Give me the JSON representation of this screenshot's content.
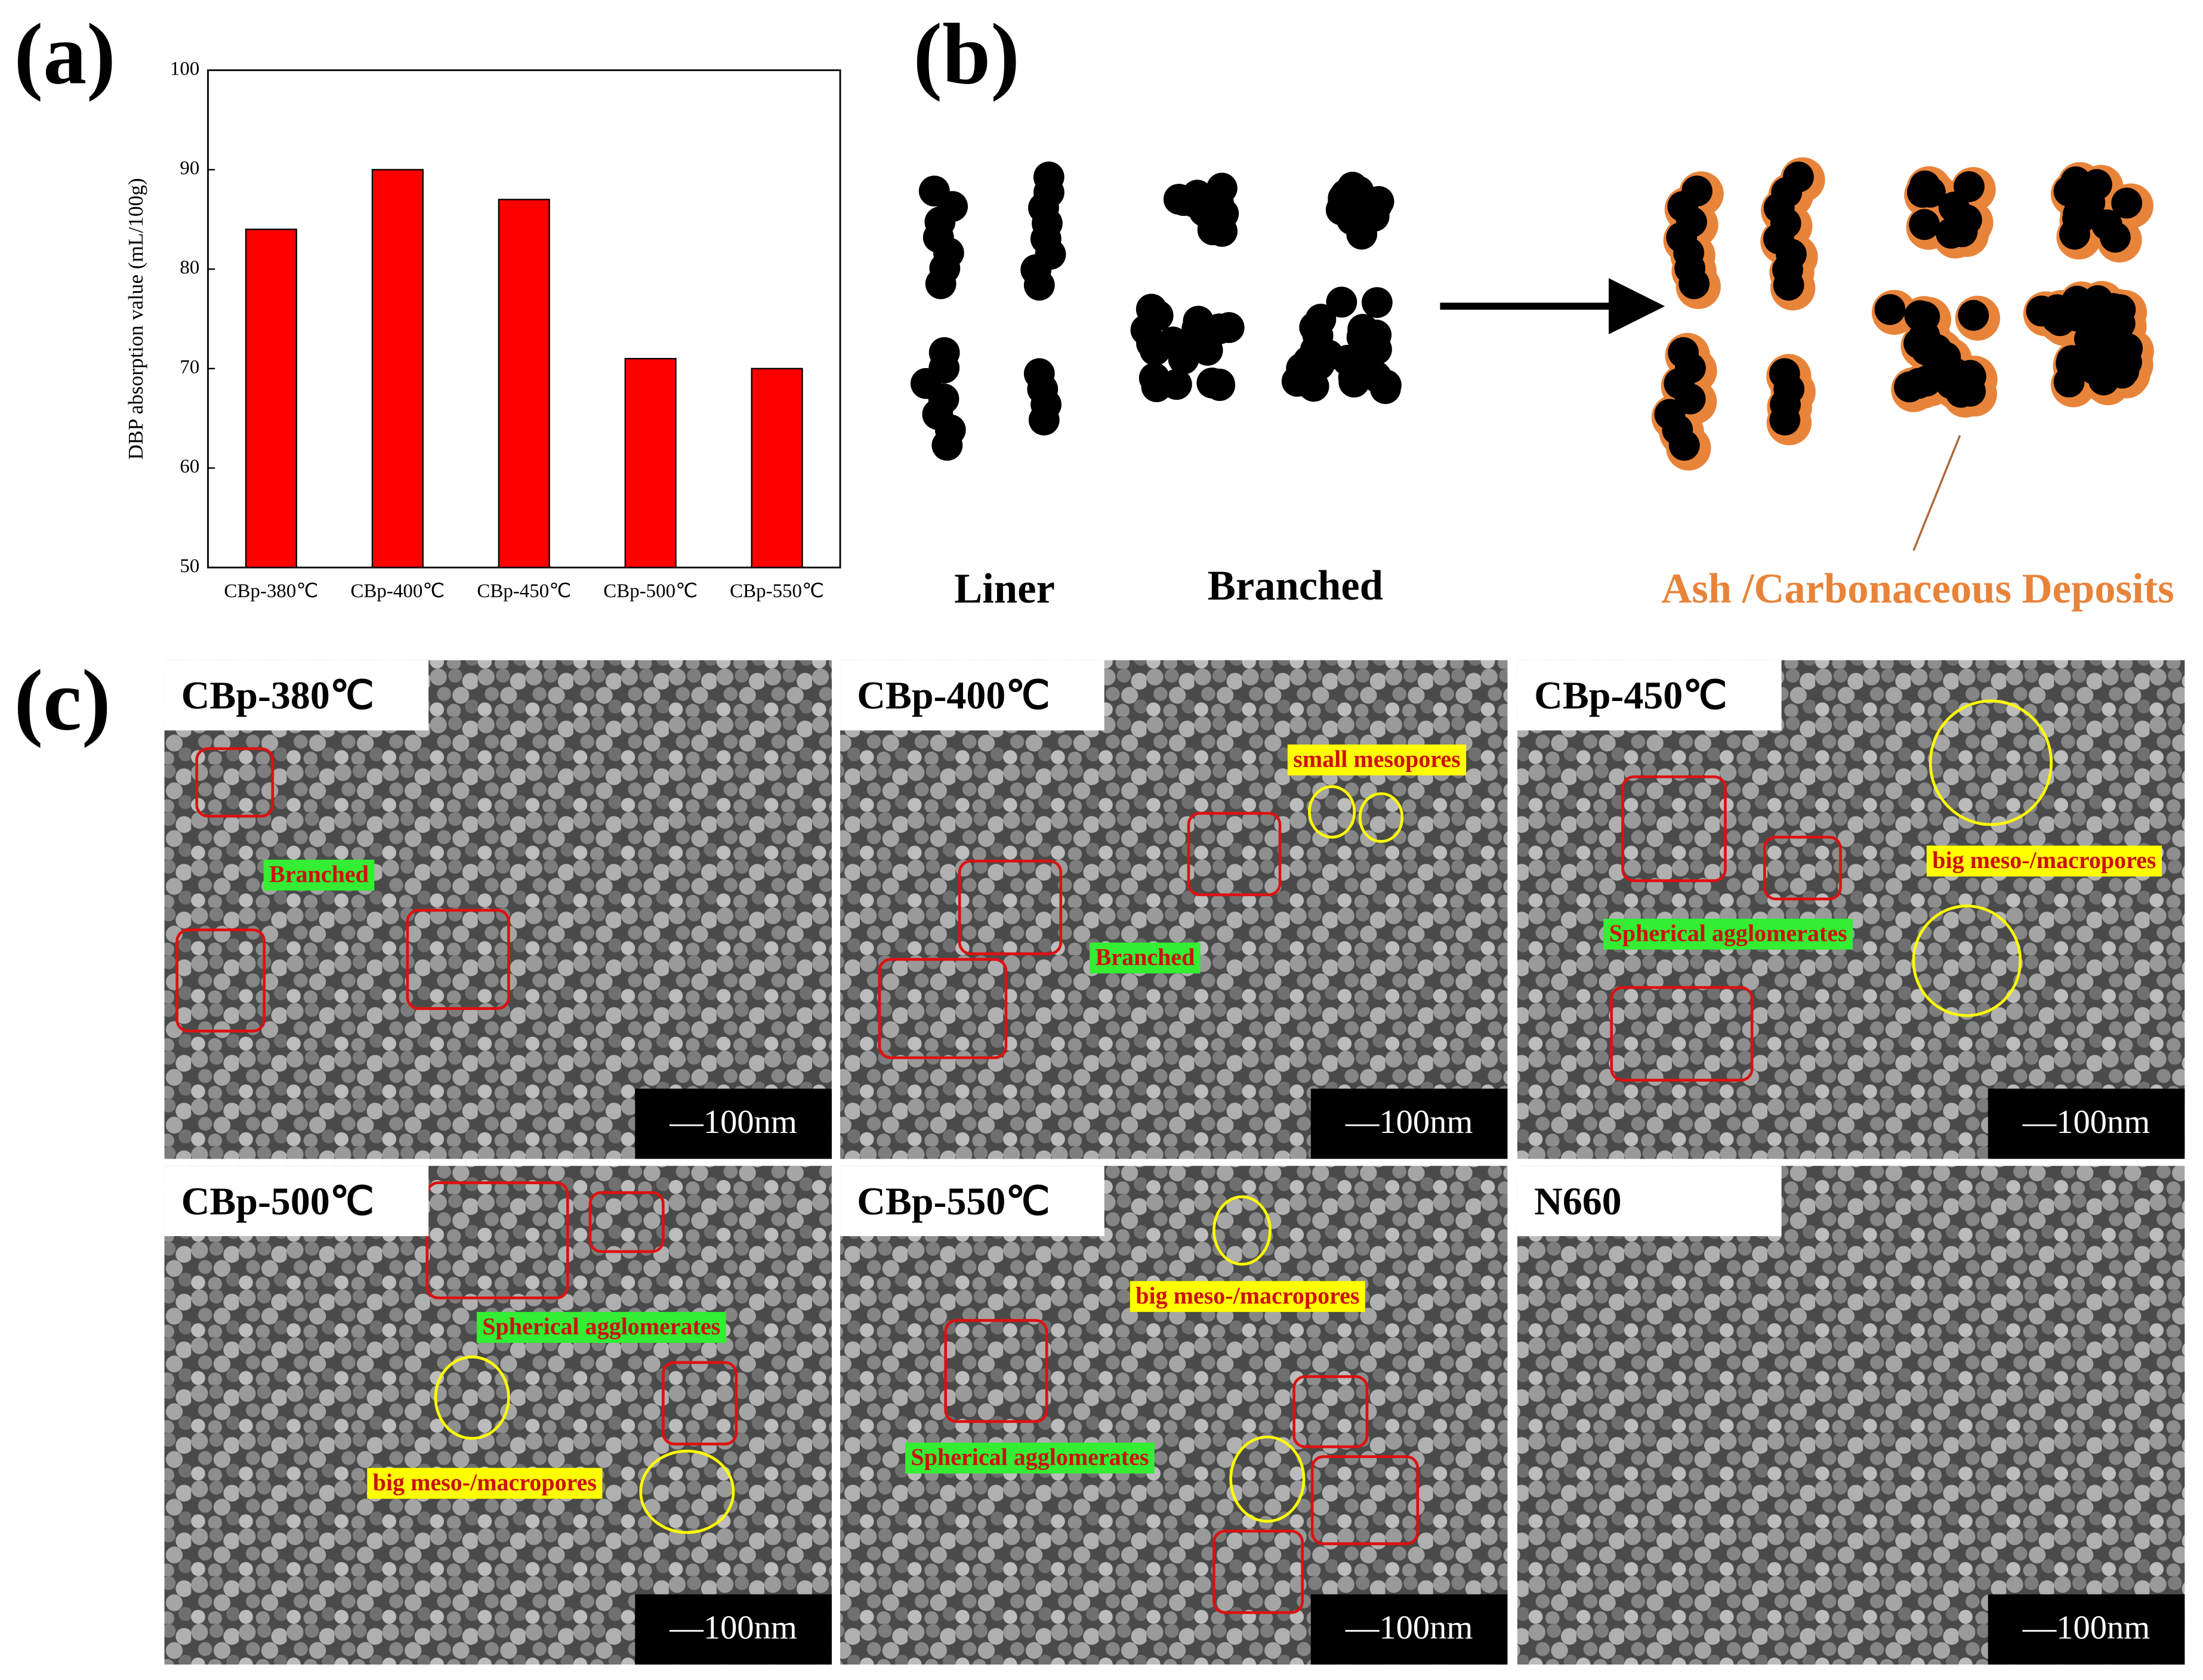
{
  "chart_data": {
    "type": "bar",
    "panel_label": "(a)",
    "y_label": "DBP absorption value (mL/100g)",
    "categories": [
      "CBp-380℃",
      "CBp-400℃",
      "CBp-450℃",
      "CBp-500℃",
      "CBp-550℃"
    ],
    "values": [
      84,
      90,
      87,
      71,
      70
    ],
    "color": "#ff0000",
    "ylim": [
      50,
      100
    ],
    "yticks": [
      50,
      60,
      70,
      80,
      90,
      100
    ]
  },
  "diagram": {
    "panel_label": "(b)",
    "linear": "Liner",
    "branched": "Branched",
    "deposits": "Ash /Carbonaceous Deposits"
  },
  "sem": {
    "panel_label": "(c)",
    "panels": [
      {
        "title": "CBp-380℃",
        "scale_bar": "—100nm",
        "annotations": [
          {
            "text": "Branched",
            "highlight": "green"
          }
        ]
      },
      {
        "title": "CBp-400℃",
        "scale_bar": "—100nm",
        "annotations": [
          {
            "text": "small mesopores",
            "highlight": "yellow"
          },
          {
            "text": "Branched",
            "highlight": "green"
          }
        ]
      },
      {
        "title": "CBp-450℃",
        "scale_bar": "—100nm",
        "annotations": [
          {
            "text": "big meso-/macropores",
            "highlight": "yellow"
          },
          {
            "text": "Spherical agglomerates",
            "highlight": "green"
          }
        ]
      },
      {
        "title": "CBp-500℃",
        "scale_bar": "—100nm",
        "annotations": [
          {
            "text": "Spherical agglomerates",
            "highlight": "green"
          },
          {
            "text": "big meso-/macropores",
            "highlight": "yellow"
          }
        ]
      },
      {
        "title": "CBp-550℃",
        "scale_bar": "—100nm",
        "annotations": [
          {
            "text": "big meso-/macropores",
            "highlight": "yellow"
          },
          {
            "text": "Spherical agglomerates",
            "highlight": "green"
          }
        ]
      },
      {
        "title": "N660",
        "scale_bar": "—100nm",
        "annotations": []
      }
    ]
  }
}
